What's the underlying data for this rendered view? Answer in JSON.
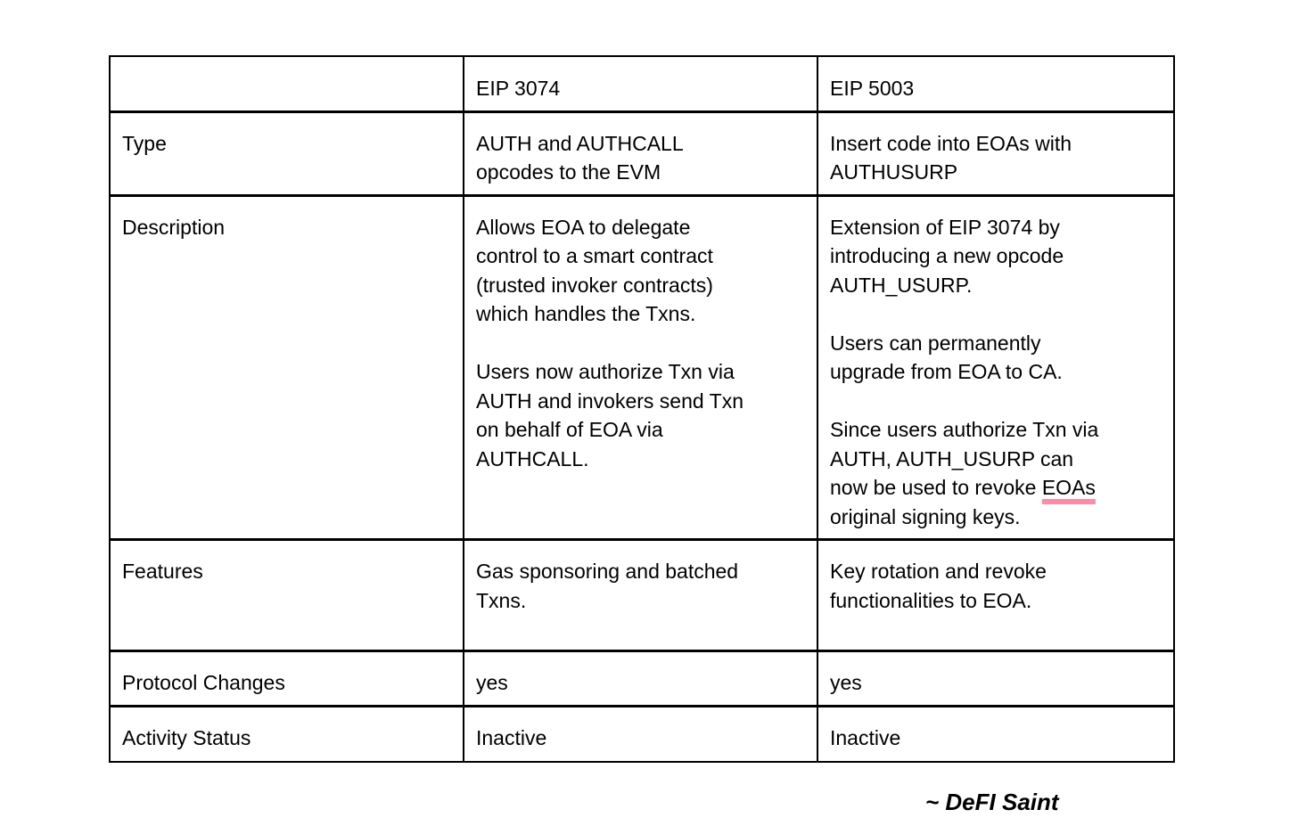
{
  "colors": {
    "background": "#ffffff",
    "border": "#000000",
    "text": "#000000",
    "underline_pink": "#f78da7"
  },
  "table": {
    "header": {
      "col0": "",
      "col1": "EIP 3074",
      "col2": "EIP 5003"
    },
    "rows": [
      {
        "label": "Type",
        "cells": [
          {
            "col": "eip-3074",
            "paragraphs": [
              [
                {
                  "text": "AUTH and AUTHCALL opcodes to the EVM"
                }
              ]
            ]
          },
          {
            "col": "eip-5003",
            "paragraphs": [
              [
                {
                  "text": "Insert code into EOAs with AUTHUSURP"
                }
              ]
            ]
          }
        ]
      },
      {
        "label": "Description",
        "cells": [
          {
            "col": "eip-3074",
            "paragraphs": [
              [
                {
                  "text": "Allows EOA to delegate control to a smart contract (trusted invoker contracts) which handles the Txns."
                }
              ],
              [
                {
                  "text": "Users now authorize Txn via AUTH and invokers send Txn on behalf of EOA via AUTHCALL."
                }
              ]
            ]
          },
          {
            "col": "eip-5003",
            "paragraphs": [
              [
                {
                  "text": "Extension of EIP 3074 by introducing a new opcode AUTH_USURP."
                }
              ],
              [
                {
                  "text": "Users can permanently upgrade from EOA to CA."
                }
              ],
              [
                {
                  "text": "Since users authorize Txn via AUTH, AUTH_USURP can now be used to revoke "
                },
                {
                  "text": "EOAs",
                  "underline": true
                },
                {
                  "text": " original signing keys."
                }
              ]
            ]
          }
        ]
      },
      {
        "label": "Features",
        "cells": [
          {
            "col": "eip-3074",
            "paragraphs": [
              [
                {
                  "text": "Gas sponsoring and batched Txns."
                }
              ]
            ]
          },
          {
            "col": "eip-5003",
            "paragraphs": [
              [
                {
                  "text": "Key rotation and revoke functionalities to EOA."
                }
              ]
            ]
          }
        ]
      },
      {
        "label": "Protocol Changes",
        "cells": [
          {
            "col": "eip-3074",
            "paragraphs": [
              [
                {
                  "text": "yes"
                }
              ]
            ]
          },
          {
            "col": "eip-5003",
            "paragraphs": [
              [
                {
                  "text": "yes"
                }
              ]
            ]
          }
        ]
      },
      {
        "label": "Activity Status",
        "cells": [
          {
            "col": "eip-3074",
            "paragraphs": [
              [
                {
                  "text": "Inactive"
                }
              ]
            ]
          },
          {
            "col": "eip-5003",
            "paragraphs": [
              [
                {
                  "text": "Inactive"
                }
              ]
            ]
          }
        ]
      }
    ]
  },
  "signature": {
    "text": "~ DeFI Saint"
  }
}
